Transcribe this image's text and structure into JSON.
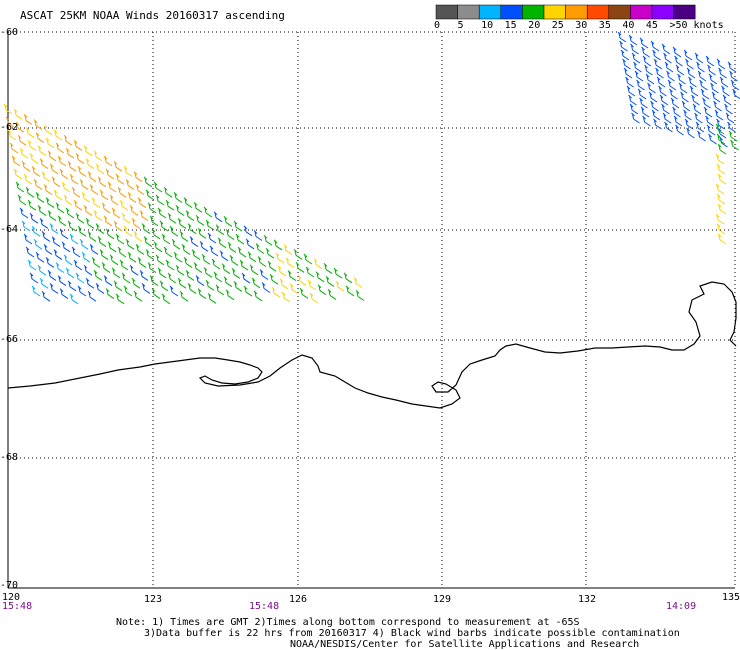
{
  "title": "ASCAT 25KM NOAA Winds 20160317 ascending",
  "legend": {
    "ticks": [
      "0",
      "5",
      "10",
      "15",
      "20",
      "25",
      "30",
      "35",
      "40",
      "45",
      ">50 knots"
    ],
    "colors": [
      "#555555",
      "#8c8c8c",
      "#00b4ff",
      "#0050ff",
      "#00b400",
      "#ffd400",
      "#ff9c00",
      "#ff4a00",
      "#8b4513",
      "#c800c8",
      "#8c00ff",
      "#4a0080"
    ]
  },
  "lat_labels": [
    "-60",
    "-62",
    "-64",
    "-66",
    "-68",
    "-70"
  ],
  "lon_labels": [
    "120",
    "123",
    "126",
    "129",
    "132",
    "135"
  ],
  "time_labels": [
    "15:48",
    "15:48",
    "14:09"
  ],
  "notes": {
    "line1": "Note: 1) Times are GMT 2)Times along bottom correspond to measurement at -65S",
    "line2": "3)Data buffer is 22 hrs from 20160317 4) Black wind barbs indicate possible contamination",
    "line3": "NOAA/NESDIS/Center for Satellite Applications and Research"
  }
}
